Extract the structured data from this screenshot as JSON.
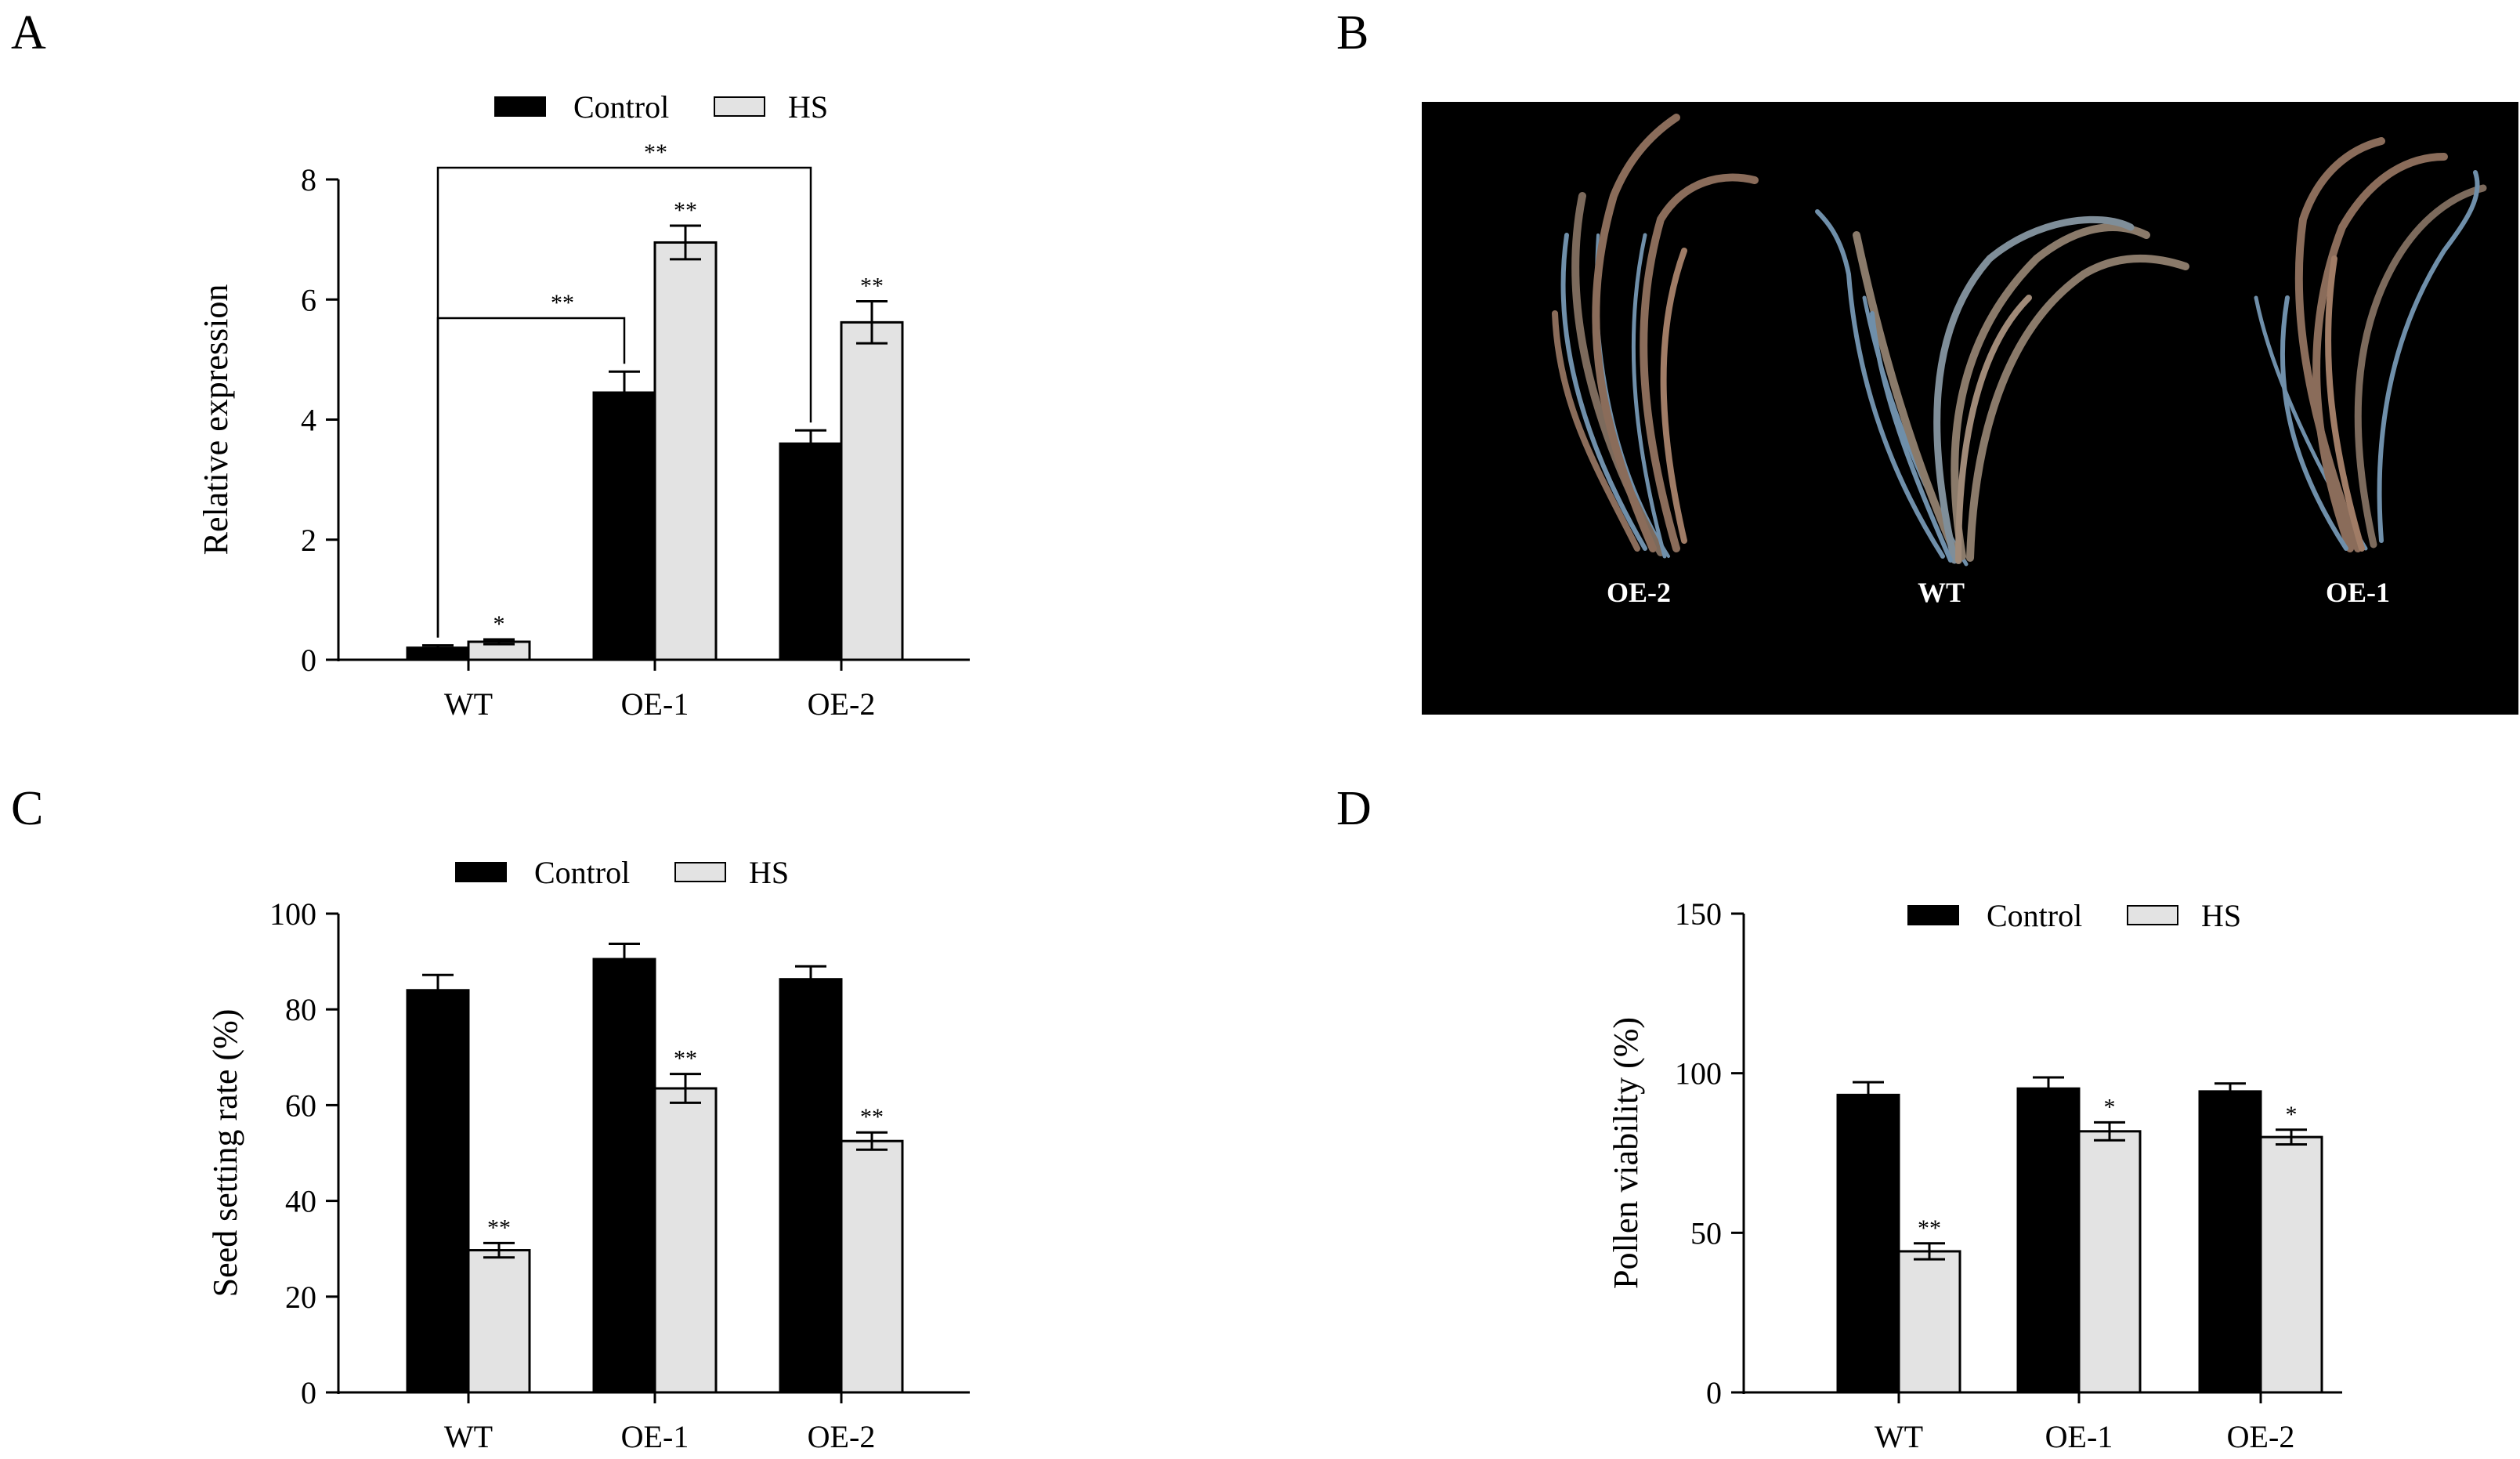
{
  "colors": {
    "control": "#000000",
    "hs": "#e3e3e3",
    "photo_bg": "#000000",
    "photo_label": "#ffffff"
  },
  "panel_b": {
    "letter": "B",
    "labels": [
      "OE-2",
      "WT",
      "OE-1"
    ]
  },
  "chart_data": [
    {
      "id": "A",
      "letter": "A",
      "type": "bar",
      "categories": [
        "WT",
        "OE-1",
        "OE-2"
      ],
      "series": [
        {
          "name": "Control",
          "values": [
            0.2,
            4.45,
            3.6
          ],
          "errors": [
            0.04,
            0.35,
            0.22
          ]
        },
        {
          "name": "HS",
          "values": [
            0.3,
            6.95,
            5.62
          ],
          "errors": [
            0.04,
            0.28,
            0.35
          ]
        }
      ],
      "significance": {
        "HS": [
          "*",
          "**",
          "**"
        ]
      },
      "brackets": [
        {
          "from": "WT",
          "to": "OE-1",
          "label": "**"
        },
        {
          "from": "WT",
          "to": "OE-2",
          "label": "**"
        }
      ],
      "title": "",
      "xlabel": "",
      "ylabel": "Relative expression",
      "ylim": [
        0,
        8
      ],
      "yticks": [
        0,
        2,
        4,
        6,
        8
      ],
      "legend": [
        "Control",
        "HS"
      ],
      "legend_position": "top-center",
      "grid": false
    },
    {
      "id": "C",
      "letter": "C",
      "type": "bar",
      "categories": [
        "WT",
        "OE-1",
        "OE-2"
      ],
      "series": [
        {
          "name": "Control",
          "values": [
            84,
            90.5,
            86.3
          ],
          "errors": [
            3.2,
            3.2,
            2.7
          ]
        },
        {
          "name": "HS",
          "values": [
            29.7,
            63.5,
            52.5
          ],
          "errors": [
            1.5,
            3.0,
            1.8
          ]
        }
      ],
      "significance": {
        "HS": [
          "**",
          "**",
          "**"
        ]
      },
      "title": "",
      "xlabel": "",
      "ylabel": "Seed setting rate (%)",
      "ylim": [
        0,
        100
      ],
      "yticks": [
        0,
        20,
        40,
        60,
        80,
        100
      ],
      "legend": [
        "Control",
        "HS"
      ],
      "legend_position": "top-center",
      "grid": false
    },
    {
      "id": "D",
      "letter": "D",
      "type": "bar",
      "categories": [
        "WT",
        "OE-1",
        "OE-2"
      ],
      "series": [
        {
          "name": "Control",
          "values": [
            93.2,
            95.2,
            94.3
          ],
          "errors": [
            4.0,
            3.5,
            2.5
          ]
        },
        {
          "name": "HS",
          "values": [
            44.2,
            81.8,
            80.0
          ],
          "errors": [
            2.5,
            2.8,
            2.3
          ]
        }
      ],
      "significance": {
        "HS": [
          "**",
          "*",
          "*"
        ]
      },
      "title": "",
      "xlabel": "",
      "ylabel": "Pollen viability (%)",
      "ylim": [
        0,
        150
      ],
      "yticks": [
        0,
        50,
        100,
        150
      ],
      "legend": [
        "Control",
        "HS"
      ],
      "legend_position": "top-center",
      "grid": false
    }
  ]
}
